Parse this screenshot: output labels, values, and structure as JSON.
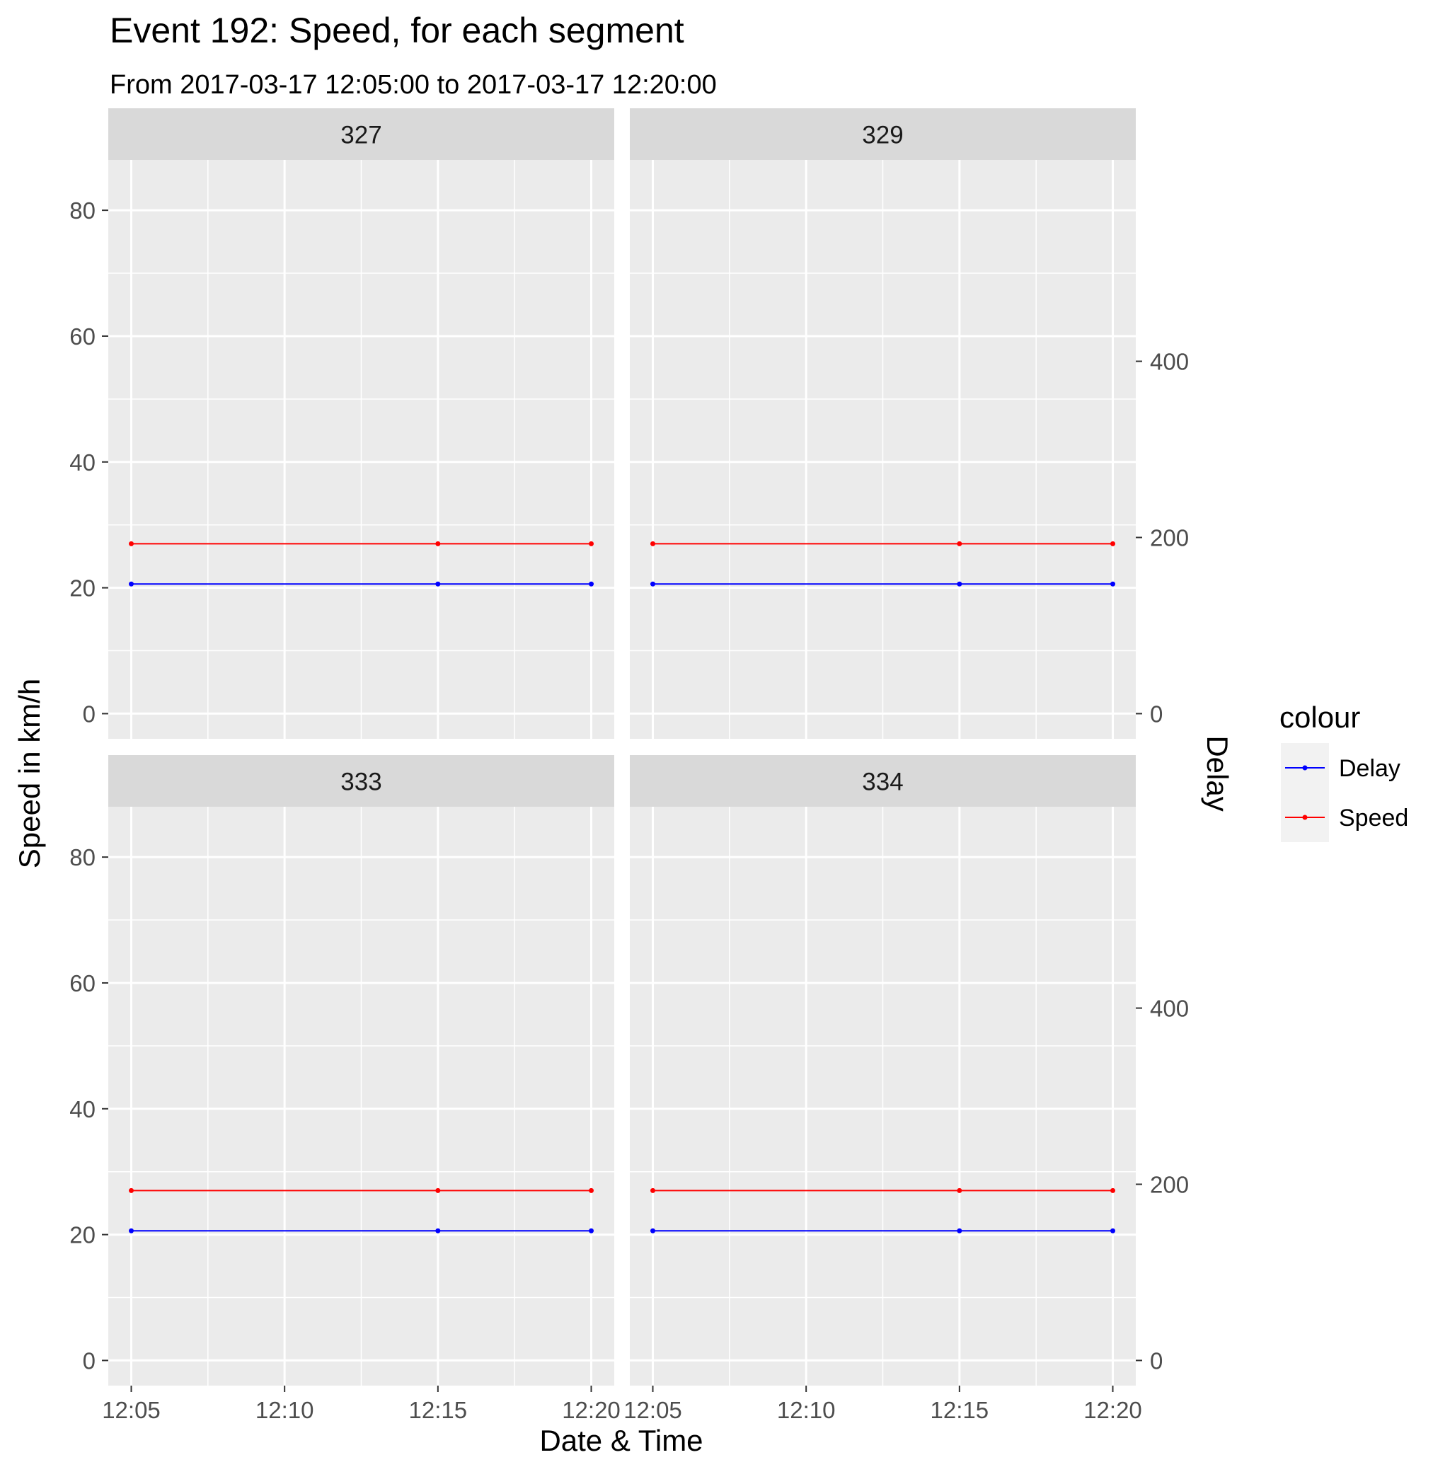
{
  "chart_data": {
    "type": "line",
    "title": "Event 192: Speed, for each segment",
    "subtitle": "From 2017-03-17 12:05:00 to 2017-03-17 12:20:00",
    "xlabel": "Date & Time",
    "ylabel": "Speed in km/h",
    "ylabel_secondary": "Delay",
    "legend": {
      "title": "colour",
      "position": "right",
      "entries": [
        "Delay",
        "Speed"
      ]
    },
    "colors": {
      "Delay": "#0000ff",
      "Speed": "#ff0000"
    },
    "x_ticks": [
      "12:05",
      "12:10",
      "12:15",
      "12:20"
    ],
    "x_tick_minutes": [
      5,
      10,
      15,
      20
    ],
    "xlim_minutes": [
      4.25,
      20.75
    ],
    "y_ticks": [
      0,
      20,
      40,
      60,
      80
    ],
    "ylim": [
      -4,
      88
    ],
    "y2_ticks": [
      0,
      200,
      400
    ],
    "y2_scale_factor": 7.143,
    "grid": true,
    "facets": [
      {
        "label": "327",
        "series": [
          {
            "name": "Delay",
            "x": [
              "12:05",
              "12:15",
              "12:20"
            ],
            "x_minutes": [
              5,
              15,
              20
            ],
            "values": [
              20.6,
              20.6,
              20.6
            ]
          },
          {
            "name": "Speed",
            "x": [
              "12:05",
              "12:15",
              "12:20"
            ],
            "x_minutes": [
              5,
              15,
              20
            ],
            "values": [
              27,
              27,
              27
            ]
          }
        ]
      },
      {
        "label": "329",
        "series": [
          {
            "name": "Delay",
            "x": [
              "12:05",
              "12:15",
              "12:20"
            ],
            "x_minutes": [
              5,
              15,
              20
            ],
            "values": [
              20.6,
              20.6,
              20.6
            ]
          },
          {
            "name": "Speed",
            "x": [
              "12:05",
              "12:15",
              "12:20"
            ],
            "x_minutes": [
              5,
              15,
              20
            ],
            "values": [
              27,
              27,
              27
            ]
          }
        ]
      },
      {
        "label": "333",
        "series": [
          {
            "name": "Delay",
            "x": [
              "12:05",
              "12:15",
              "12:20"
            ],
            "x_minutes": [
              5,
              15,
              20
            ],
            "values": [
              20.6,
              20.6,
              20.6
            ]
          },
          {
            "name": "Speed",
            "x": [
              "12:05",
              "12:15",
              "12:20"
            ],
            "x_minutes": [
              5,
              15,
              20
            ],
            "values": [
              27,
              27,
              27
            ]
          }
        ]
      },
      {
        "label": "334",
        "series": [
          {
            "name": "Delay",
            "x": [
              "12:05",
              "12:15",
              "12:20"
            ],
            "x_minutes": [
              5,
              15,
              20
            ],
            "values": [
              20.6,
              20.6,
              20.6
            ]
          },
          {
            "name": "Speed",
            "x": [
              "12:05",
              "12:15",
              "12:20"
            ],
            "x_minutes": [
              5,
              15,
              20
            ],
            "values": [
              27,
              27,
              27
            ]
          }
        ]
      }
    ]
  }
}
